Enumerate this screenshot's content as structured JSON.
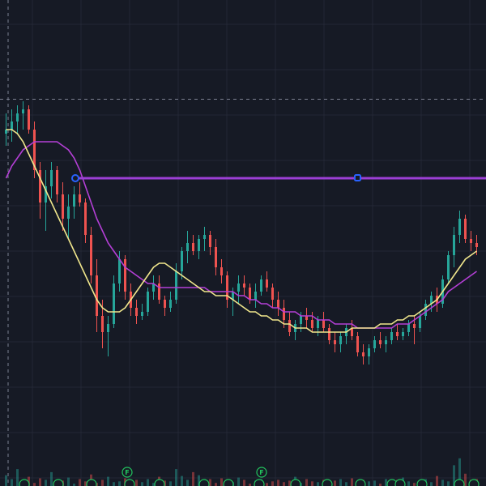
{
  "colors": {
    "background": "#161a25",
    "grid": "#232735",
    "up": "#26a69a",
    "down": "#ef5350",
    "ma_fast": "#f0e68c",
    "ma_slow": "#b43fd6",
    "hline": "#9c3fd6",
    "handle": "#2962ff",
    "badge": "#22c55e",
    "crosshair": "#7b8091"
  },
  "icons": {
    "event_badge": "earnings-badge-icon",
    "line_handle": "drag-handle-icon"
  },
  "badges": {
    "earnings_label": "F"
  },
  "chart_data": {
    "type": "candlestick",
    "grid": true,
    "ylim": [
      0,
      100
    ],
    "volume_max": 100,
    "horizontal_line": 68,
    "crosshair_price": 87.5,
    "candles": [
      [
        79,
        84,
        76,
        80
      ],
      [
        80,
        85,
        77,
        82
      ],
      [
        82,
        86,
        79,
        84
      ],
      [
        84,
        87,
        80,
        85
      ],
      [
        85,
        86,
        79,
        80
      ],
      [
        80,
        82,
        68,
        70
      ],
      [
        70,
        72,
        58,
        62
      ],
      [
        62,
        70,
        55,
        66
      ],
      [
        66,
        72,
        63,
        70
      ],
      [
        70,
        71,
        62,
        64
      ],
      [
        64,
        67,
        55,
        58
      ],
      [
        58,
        64,
        53,
        61
      ],
      [
        61,
        66,
        58,
        64
      ],
      [
        64,
        67,
        61,
        62
      ],
      [
        62,
        63,
        52,
        54
      ],
      [
        54,
        56,
        42,
        44
      ],
      [
        44,
        48,
        30,
        34
      ],
      [
        34,
        38,
        26,
        30
      ],
      [
        30,
        34,
        24,
        32
      ],
      [
        32,
        44,
        31,
        42
      ],
      [
        42,
        50,
        40,
        48
      ],
      [
        48,
        49,
        38,
        40
      ],
      [
        40,
        42,
        34,
        36
      ],
      [
        36,
        38,
        32,
        34
      ],
      [
        34,
        37,
        33,
        35
      ],
      [
        35,
        41,
        34,
        40
      ],
      [
        40,
        44,
        38,
        42
      ],
      [
        42,
        44,
        37,
        38
      ],
      [
        38,
        39,
        34,
        36
      ],
      [
        36,
        40,
        35,
        38
      ],
      [
        38,
        47,
        37,
        45
      ],
      [
        45,
        51,
        43,
        50
      ],
      [
        50,
        55,
        47,
        52
      ],
      [
        52,
        54,
        49,
        50
      ],
      [
        50,
        54,
        48,
        53
      ],
      [
        53,
        56,
        50,
        54
      ],
      [
        54,
        55,
        49,
        51
      ],
      [
        51,
        53,
        44,
        46
      ],
      [
        46,
        48,
        42,
        44
      ],
      [
        44,
        45,
        36,
        38
      ],
      [
        38,
        41,
        34,
        40
      ],
      [
        40,
        44,
        37,
        42
      ],
      [
        42,
        44,
        39,
        41
      ],
      [
        41,
        42,
        37,
        38
      ],
      [
        38,
        42,
        36,
        40
      ],
      [
        40,
        44,
        39,
        43
      ],
      [
        43,
        45,
        40,
        41
      ],
      [
        41,
        42,
        36,
        38
      ],
      [
        38,
        40,
        34,
        36
      ],
      [
        36,
        38,
        31,
        33
      ],
      [
        33,
        35,
        29,
        30
      ],
      [
        30,
        33,
        28,
        32
      ],
      [
        32,
        35,
        30,
        34
      ],
      [
        34,
        36,
        31,
        33
      ],
      [
        33,
        35,
        30,
        31
      ],
      [
        31,
        34,
        29,
        33
      ],
      [
        33,
        35,
        30,
        31
      ],
      [
        31,
        32,
        27,
        28
      ],
      [
        28,
        30,
        25,
        27
      ],
      [
        27,
        30,
        25,
        29
      ],
      [
        29,
        32,
        27,
        31
      ],
      [
        31,
        33,
        28,
        29
      ],
      [
        29,
        30,
        24,
        25
      ],
      [
        25,
        27,
        22,
        24
      ],
      [
        24,
        27,
        22,
        26
      ],
      [
        26,
        29,
        25,
        28
      ],
      [
        28,
        30,
        26,
        27
      ],
      [
        27,
        29,
        25,
        28
      ],
      [
        28,
        31,
        27,
        30
      ],
      [
        30,
        32,
        28,
        29
      ],
      [
        29,
        31,
        28,
        30
      ],
      [
        30,
        33,
        29,
        32
      ],
      [
        32,
        34,
        27,
        31
      ],
      [
        31,
        35,
        30,
        34
      ],
      [
        34,
        38,
        33,
        37
      ],
      [
        37,
        40,
        35,
        39
      ],
      [
        39,
        41,
        35,
        37
      ],
      [
        37,
        44,
        36,
        43
      ],
      [
        43,
        50,
        42,
        49
      ],
      [
        49,
        56,
        46,
        54
      ],
      [
        54,
        60,
        52,
        58
      ],
      [
        58,
        59,
        52,
        53
      ],
      [
        53,
        55,
        50,
        52
      ],
      [
        52,
        54,
        49,
        51
      ]
    ],
    "volume": [
      14,
      9,
      22,
      6,
      12,
      4,
      10,
      8,
      18,
      5,
      7,
      11,
      3,
      9,
      6,
      15,
      4,
      8,
      12,
      5,
      6,
      10,
      3,
      8,
      5,
      9,
      4,
      12,
      7,
      6,
      22,
      13,
      8,
      18,
      14,
      6,
      9,
      4,
      10,
      7,
      5,
      11,
      8,
      3,
      7,
      9,
      4,
      6,
      8,
      5,
      7,
      12,
      4,
      9,
      6,
      5,
      8,
      3,
      7,
      9,
      5,
      10,
      4,
      8,
      6,
      7,
      3,
      9,
      5,
      8,
      11,
      6,
      4,
      7,
      9,
      5,
      13,
      8,
      6,
      27,
      36,
      16,
      8,
      9
    ],
    "ma_fast": [
      80,
      80,
      79,
      77,
      74,
      71,
      68,
      65,
      62,
      59,
      56,
      53,
      50,
      47,
      44,
      41,
      38,
      36,
      35,
      35,
      35,
      36,
      38,
      40,
      42,
      44,
      46,
      47,
      47,
      46,
      45,
      44,
      43,
      42,
      41,
      40,
      40,
      39,
      39,
      39,
      38,
      37,
      36,
      35,
      35,
      34,
      34,
      33,
      33,
      32,
      32,
      31,
      31,
      31,
      30,
      30,
      30,
      30,
      30,
      30,
      30,
      31,
      31,
      31,
      31,
      31,
      32,
      32,
      32,
      33,
      33,
      34,
      34,
      35,
      36,
      37,
      38,
      40,
      42,
      44,
      46,
      48,
      49,
      50
    ],
    "ma_slow": [
      68,
      71,
      73,
      75,
      76,
      77,
      77,
      77,
      77,
      77,
      76,
      75,
      73,
      70,
      66,
      62,
      58,
      55,
      52,
      50,
      48,
      46,
      45,
      44,
      43,
      42,
      42,
      41,
      41,
      41,
      41,
      41,
      41,
      41,
      41,
      41,
      40,
      40,
      40,
      40,
      40,
      39,
      39,
      38,
      38,
      37,
      37,
      36,
      36,
      35,
      35,
      35,
      34,
      34,
      34,
      33,
      33,
      33,
      32,
      32,
      32,
      32,
      31,
      31,
      31,
      31,
      31,
      31,
      31,
      32,
      32,
      32,
      33,
      34,
      35,
      36,
      37,
      38,
      40,
      41,
      42,
      43,
      44,
      45
    ]
  }
}
